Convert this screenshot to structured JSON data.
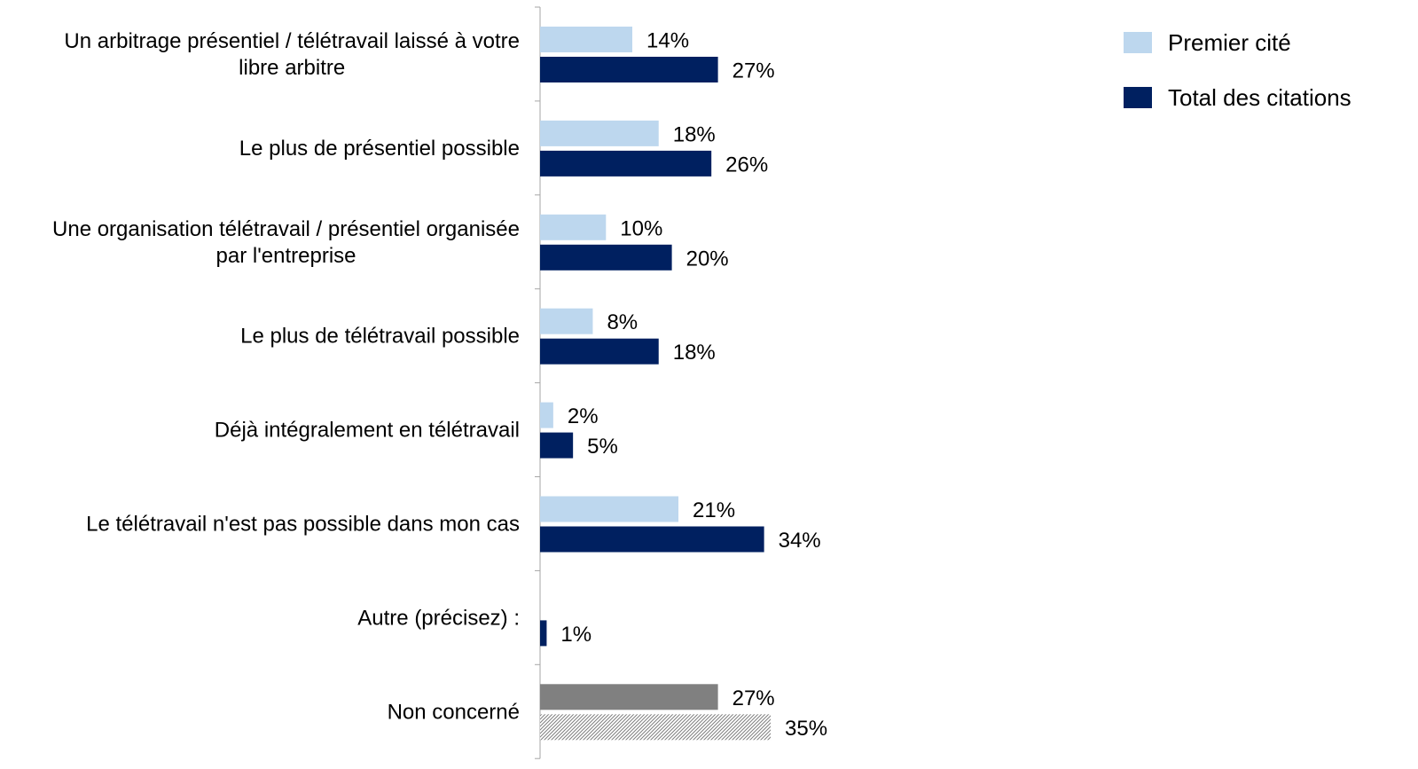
{
  "chart_data": {
    "type": "bar",
    "orientation": "horizontal",
    "categories": [
      [
        "Un arbitrage présentiel / télétravail laissé à votre",
        "libre arbitre"
      ],
      [
        "Le plus de présentiel possible"
      ],
      [
        "Une organisation télétravail / présentiel organisée",
        "par l'entreprise"
      ],
      [
        "Le plus de télétravail possible"
      ],
      [
        "Déjà intégralement en télétravail"
      ],
      [
        "Le télétravail n'est pas possible dans mon cas"
      ],
      [
        "Autre (précisez) :"
      ],
      [
        "Non concerné"
      ]
    ],
    "series": [
      {
        "name": "Premier cité",
        "color": "#bdd7ee",
        "values": [
          14,
          18,
          10,
          8,
          2,
          21,
          null,
          27
        ],
        "labels": [
          "14%",
          "18%",
          "10%",
          "8%",
          "2%",
          "21%",
          "",
          "27%"
        ]
      },
      {
        "name": "Total des citations",
        "color": "#002060",
        "values": [
          27,
          26,
          20,
          18,
          5,
          34,
          1,
          35
        ],
        "labels": [
          "27%",
          "26%",
          "20%",
          "18%",
          "5%",
          "34%",
          "1%",
          "35%"
        ]
      }
    ],
    "special_colors": {
      "non_concerne_first": "#808080",
      "non_concerne_total_pattern": "hatched-grey"
    },
    "legend": {
      "position": "top-right",
      "items": [
        {
          "label": "Premier cité",
          "color": "#bdd7ee"
        },
        {
          "label": "Total des citations",
          "color": "#002060"
        }
      ]
    },
    "value_unit": "%",
    "xlim": [
      0,
      35
    ],
    "grid": false
  }
}
